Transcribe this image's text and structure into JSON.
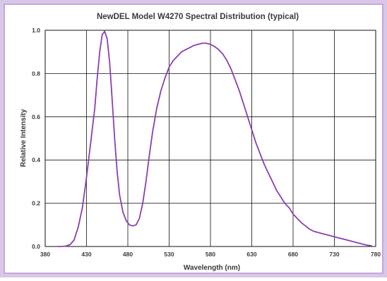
{
  "colors": {
    "frame": "#d9c7e8",
    "frame_inner": "#c4a7da",
    "plot_background": "#ffffff",
    "grid": "#111111",
    "series": "#8a3fb2",
    "text": "#3a3a3a"
  },
  "chart_data": {
    "type": "line",
    "title": "NewDEL Model W4270 Spectral Distribution (typical)",
    "xlabel": "Wavelength (nm)",
    "ylabel": "Relative Intensity",
    "xlim": [
      380,
      780
    ],
    "ylim": [
      0.0,
      1.0
    ],
    "grid": true,
    "legend": "none",
    "x_ticks": [
      380,
      430,
      480,
      530,
      580,
      630,
      680,
      730,
      780
    ],
    "x_tick_labels": [
      "380",
      "430",
      "480",
      "530",
      "580",
      "630",
      "680",
      "730",
      "780"
    ],
    "y_ticks": [
      0.0,
      0.2,
      0.4,
      0.6,
      0.8,
      1.0
    ],
    "y_tick_labels": [
      "0.0",
      "0.2",
      "0.4",
      "0.6",
      "0.8",
      "1.0"
    ],
    "series": [
      {
        "x": [
          395,
          400,
          405,
          410,
          415,
          420,
          425,
          430,
          435,
          440,
          443,
          446,
          449,
          452,
          455,
          458,
          461,
          464,
          467,
          470,
          474,
          478,
          482,
          486,
          490,
          494,
          498,
          502,
          506,
          510,
          515,
          520,
          525,
          530,
          535,
          540,
          545,
          550,
          555,
          560,
          565,
          570,
          575,
          580,
          585,
          590,
          595,
          600,
          605,
          610,
          615,
          620,
          625,
          630,
          635,
          640,
          645,
          650,
          655,
          660,
          665,
          670,
          675,
          680,
          685,
          690,
          695,
          700,
          705,
          710,
          715,
          720,
          725,
          730,
          735,
          740,
          745,
          750,
          755,
          760,
          765,
          770,
          775
        ],
        "y": [
          0.0,
          0.0,
          0.002,
          0.008,
          0.03,
          0.09,
          0.18,
          0.32,
          0.48,
          0.64,
          0.78,
          0.9,
          0.98,
          0.995,
          0.96,
          0.85,
          0.68,
          0.5,
          0.35,
          0.24,
          0.16,
          0.12,
          0.1,
          0.095,
          0.1,
          0.13,
          0.2,
          0.3,
          0.42,
          0.53,
          0.64,
          0.72,
          0.78,
          0.83,
          0.86,
          0.88,
          0.9,
          0.91,
          0.92,
          0.93,
          0.935,
          0.94,
          0.94,
          0.935,
          0.925,
          0.91,
          0.89,
          0.86,
          0.82,
          0.77,
          0.72,
          0.66,
          0.6,
          0.54,
          0.48,
          0.43,
          0.38,
          0.34,
          0.3,
          0.26,
          0.23,
          0.2,
          0.18,
          0.15,
          0.13,
          0.11,
          0.095,
          0.08,
          0.07,
          0.065,
          0.06,
          0.055,
          0.05,
          0.045,
          0.04,
          0.035,
          0.03,
          0.025,
          0.02,
          0.015,
          0.01,
          0.006,
          0.003
        ]
      }
    ]
  }
}
